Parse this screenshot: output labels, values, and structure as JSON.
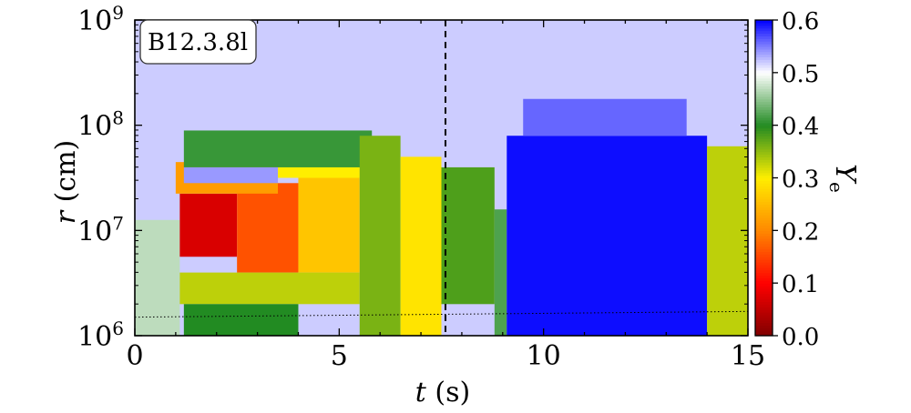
{
  "chart_data": {
    "type": "heatmap",
    "annotation": "B12.3.8l",
    "xlabel": "t (s)",
    "ylabel": "r (cm)",
    "colorbar_label": "Ye",
    "x_range": [
      0,
      15
    ],
    "y_range": [
      1000000,
      1000000000
    ],
    "y_scale": "log",
    "x_ticks": [
      {
        "value": 0,
        "label": "0"
      },
      {
        "value": 5,
        "label": "5"
      },
      {
        "value": 10,
        "label": "10"
      },
      {
        "value": 15,
        "label": "15"
      }
    ],
    "y_ticks": [
      {
        "exp": 6,
        "label": "10^6"
      },
      {
        "exp": 7,
        "label": "10^7"
      },
      {
        "exp": 8,
        "label": "10^8"
      },
      {
        "exp": 9,
        "label": "10^9"
      }
    ],
    "colorbar_range": [
      0.0,
      0.6
    ],
    "colorbar_ticks": [
      "0.0",
      "0.1",
      "0.2",
      "0.3",
      "0.4",
      "0.5",
      "0.6"
    ],
    "colormap": [
      {
        "v": 0.0,
        "c": "#7f0000"
      },
      {
        "v": 0.1,
        "c": "#ff0000"
      },
      {
        "v": 0.2,
        "c": "#ff8800"
      },
      {
        "v": 0.3,
        "c": "#ffee00"
      },
      {
        "v": 0.4,
        "c": "#228b22"
      },
      {
        "v": 0.5,
        "c": "#ffffff"
      },
      {
        "v": 0.6,
        "c": "#0000ff"
      }
    ],
    "vertical_dashed_line_t": 7.6,
    "dotted_line": {
      "t": [
        0,
        15
      ],
      "r": [
        1500000,
        1700000
      ]
    },
    "background_ye": 0.52,
    "regions": [
      {
        "t": [
          0.0,
          1.1
        ],
        "logr": [
          6.0,
          7.1
        ],
        "ye": 0.47
      },
      {
        "t": [
          1.1,
          2.5
        ],
        "logr": [
          6.75,
          7.35
        ],
        "ye": 0.07
      },
      {
        "t": [
          2.5,
          4.0
        ],
        "logr": [
          6.6,
          7.45
        ],
        "ye": 0.16
      },
      {
        "t": [
          4.0,
          5.5
        ],
        "logr": [
          6.6,
          7.6
        ],
        "ye": 0.26
      },
      {
        "t": [
          1.0,
          3.5
        ],
        "logr": [
          7.35,
          7.65
        ],
        "ye": 0.22
      },
      {
        "t": [
          3.5,
          5.5
        ],
        "logr": [
          7.5,
          7.8
        ],
        "ye": 0.3
      },
      {
        "t": [
          1.1,
          5.5
        ],
        "logr": [
          6.3,
          6.6
        ],
        "ye": 0.33
      },
      {
        "t": [
          1.2,
          4.0
        ],
        "logr": [
          6.0,
          6.3
        ],
        "ye": 0.4
      },
      {
        "t": [
          1.2,
          5.8
        ],
        "logr": [
          7.6,
          7.95
        ],
        "ye": 0.41
      },
      {
        "t": [
          1.2,
          3.5
        ],
        "logr": [
          7.45,
          7.6
        ],
        "ye": 0.54
      },
      {
        "t": [
          5.5,
          6.5
        ],
        "logr": [
          6.0,
          7.9
        ],
        "ye": 0.36
      },
      {
        "t": [
          6.5,
          7.5
        ],
        "logr": [
          6.0,
          7.7
        ],
        "ye": 0.29
      },
      {
        "t": [
          7.5,
          8.8
        ],
        "logr": [
          6.3,
          7.6
        ],
        "ye": 0.38
      },
      {
        "t": [
          8.8,
          9.1
        ],
        "logr": [
          6.0,
          7.2
        ],
        "ye": 0.42
      },
      {
        "t": [
          9.1,
          14.0
        ],
        "logr": [
          6.0,
          7.9
        ],
        "ye": 0.595
      },
      {
        "t": [
          9.5,
          13.5
        ],
        "logr": [
          7.9,
          8.25
        ],
        "ye": 0.56
      },
      {
        "t": [
          14.0,
          15.0
        ],
        "logr": [
          6.0,
          7.8
        ],
        "ye": 0.33
      }
    ]
  }
}
